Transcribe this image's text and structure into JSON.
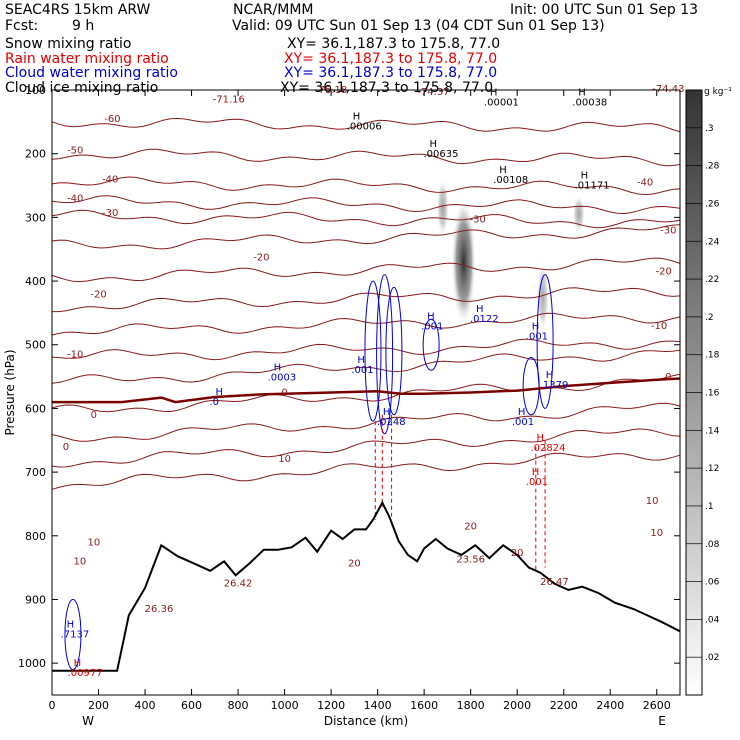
{
  "header": {
    "model": "SEAC4RS 15km ARW",
    "org": "NCAR/MMM",
    "init": "Init: 00 UTC Sun 01 Sep 13",
    "fcst_label": "Fcst:",
    "fcst_value": "9 h",
    "valid": "Valid: 09 UTC Sun 01 Sep 13 (04 CDT Sun 01 Sep 13)"
  },
  "fields": [
    {
      "name": "Snow mixing ratio",
      "xy": "XY=  36.1,187.3 to 175.8, 77.0",
      "color": "#000000"
    },
    {
      "name": "Rain water mixing ratio",
      "xy": "XY=  36.1,187.3 to 175.8, 77.0",
      "color": "#e00000"
    },
    {
      "name": "Cloud water mixing ratio",
      "xy": "XY=  36.1,187.3 to 175.8, 77.0",
      "color": "#0000d0"
    },
    {
      "name": "Cloud ice mixing ratio",
      "xy": "XY=  36.1,187.3 to 175.8, 77.0",
      "color": "#000000"
    }
  ],
  "colorbar": {
    "unit": "g kg⁻¹",
    "ticks": [
      ".02",
      ".04",
      ".06",
      ".08",
      ".1",
      ".12",
      ".14",
      ".16",
      ".18",
      ".2",
      ".22",
      ".24",
      ".26",
      ".28",
      ".3"
    ]
  },
  "chart_data": {
    "type": "contour cross-section",
    "xlabel": "Distance (km)",
    "ylabel": "Pressure (hPa)",
    "xlim": [
      0,
      2700
    ],
    "ylim": [
      1050,
      100
    ],
    "xticks": [
      "0",
      "200",
      "400",
      "600",
      "800",
      "1000",
      "1200",
      "1400",
      "1600",
      "1800",
      "2000",
      "2200",
      "2400",
      "2600"
    ],
    "xtick_values": [
      0,
      200,
      400,
      600,
      800,
      1000,
      1200,
      1400,
      1600,
      1800,
      2000,
      2200,
      2400,
      2600
    ],
    "yticks": [
      "100",
      "200",
      "300",
      "400",
      "500",
      "600",
      "700",
      "800",
      "900",
      "1000"
    ],
    "ytick_values": [
      100,
      200,
      300,
      400,
      500,
      600,
      700,
      800,
      900,
      1000
    ],
    "end_labels": {
      "left": "W",
      "right": "E"
    },
    "temperature_contour_labels": [
      {
        "text": "-71.16",
        "x": 760,
        "p": 120
      },
      {
        "text": "-75.18",
        "x": 1200,
        "p": 105
      },
      {
        "text": "-74.37",
        "x": 1640,
        "p": 108
      },
      {
        "text": "-74.43",
        "x": 2650,
        "p": 103
      },
      {
        "text": "-60",
        "x": 260,
        "p": 150
      },
      {
        "text": "-50",
        "x": 100,
        "p": 200
      },
      {
        "text": "-40",
        "x": 2550,
        "p": 250
      },
      {
        "text": "-40",
        "x": 250,
        "p": 245
      },
      {
        "text": "-40",
        "x": 100,
        "p": 275
      },
      {
        "text": "-30",
        "x": 250,
        "p": 298
      },
      {
        "text": "-30",
        "x": 1830,
        "p": 308
      },
      {
        "text": "-30",
        "x": 2650,
        "p": 325
      },
      {
        "text": "-20",
        "x": 900,
        "p": 368
      },
      {
        "text": "-20",
        "x": 200,
        "p": 426
      },
      {
        "text": "-20",
        "x": 2630,
        "p": 390
      },
      {
        "text": "-10",
        "x": 100,
        "p": 520
      },
      {
        "text": "-10",
        "x": 2610,
        "p": 475
      },
      {
        "text": "0",
        "x": 2650,
        "p": 555
      },
      {
        "text": "0",
        "x": 1000,
        "p": 580
      },
      {
        "text": "0",
        "x": 180,
        "p": 615
      },
      {
        "text": "0",
        "x": 60,
        "p": 665
      },
      {
        "text": "10",
        "x": 1000,
        "p": 684
      },
      {
        "text": "10",
        "x": 2580,
        "p": 750
      },
      {
        "text": "10",
        "x": 180,
        "p": 815
      },
      {
        "text": "10",
        "x": 120,
        "p": 845
      },
      {
        "text": "10",
        "x": 2600,
        "p": 800
      },
      {
        "text": "20",
        "x": 1300,
        "p": 848
      },
      {
        "text": "20",
        "x": 1800,
        "p": 790
      },
      {
        "text": "20",
        "x": 2000,
        "p": 832
      },
      {
        "text": "23.56",
        "x": 1800,
        "p": 842
      },
      {
        "text": "26.42",
        "x": 800,
        "p": 880
      },
      {
        "text": "26.36",
        "x": 460,
        "p": 920
      },
      {
        "text": "26.47",
        "x": 2160,
        "p": 877
      }
    ],
    "maxima_labels": [
      {
        "text": ".00006",
        "x": 1310,
        "p": 162,
        "color": "black"
      },
      {
        "text": ".00635",
        "x": 1640,
        "p": 205,
        "color": "black"
      },
      {
        "text": ".00108",
        "x": 1940,
        "p": 246,
        "color": "black"
      },
      {
        "text": ".01171",
        "x": 2290,
        "p": 255,
        "color": "black"
      },
      {
        "text": ".00001",
        "x": 1900,
        "p": 124,
        "color": "black"
      },
      {
        "text": ".00038",
        "x": 2280,
        "p": 124,
        "color": "black"
      },
      {
        "text": ".0122",
        "x": 1840,
        "p": 464,
        "color": "blue"
      },
      {
        "text": ".001",
        "x": 1630,
        "p": 476,
        "color": "blue"
      },
      {
        "text": ".0003",
        "x": 970,
        "p": 556,
        "color": "blue"
      },
      {
        "text": ".0",
        "x": 720,
        "p": 595,
        "color": "blue"
      },
      {
        "text": ".001",
        "x": 1330,
        "p": 544,
        "color": "blue"
      },
      {
        "text": ".001",
        "x": 2080,
        "p": 492,
        "color": "blue"
      },
      {
        "text": ".1379",
        "x": 2140,
        "p": 568,
        "color": "blue"
      },
      {
        "text": ".001",
        "x": 2020,
        "p": 626,
        "color": "blue"
      },
      {
        "text": ".0248",
        "x": 1440,
        "p": 626,
        "color": "blue"
      },
      {
        "text": ".02824",
        "x": 2100,
        "p": 667,
        "color": "red"
      },
      {
        "text": ".001",
        "x": 2080,
        "p": 720,
        "color": "red"
      },
      {
        "text": ".7137",
        "x": 80,
        "p": 960,
        "color": "blue"
      },
      {
        "text": ".00977",
        "x": 110,
        "p": 1020,
        "color": "red"
      }
    ],
    "terrain_profile_p": [
      [
        0,
        1012
      ],
      [
        280,
        1012
      ],
      [
        330,
        925
      ],
      [
        400,
        882
      ],
      [
        470,
        815
      ],
      [
        540,
        832
      ],
      [
        620,
        845
      ],
      [
        680,
        855
      ],
      [
        740,
        840
      ],
      [
        790,
        862
      ],
      [
        850,
        843
      ],
      [
        910,
        822
      ],
      [
        970,
        822
      ],
      [
        1030,
        818
      ],
      [
        1090,
        803
      ],
      [
        1140,
        825
      ],
      [
        1200,
        792
      ],
      [
        1250,
        805
      ],
      [
        1300,
        790
      ],
      [
        1350,
        790
      ],
      [
        1380,
        775
      ],
      [
        1420,
        748
      ],
      [
        1450,
        770
      ],
      [
        1490,
        808
      ],
      [
        1530,
        830
      ],
      [
        1570,
        840
      ],
      [
        1600,
        820
      ],
      [
        1650,
        805
      ],
      [
        1700,
        820
      ],
      [
        1760,
        830
      ],
      [
        1820,
        815
      ],
      [
        1880,
        835
      ],
      [
        1940,
        815
      ],
      [
        2000,
        830
      ],
      [
        2050,
        850
      ],
      [
        2100,
        858
      ],
      [
        2160,
        875
      ],
      [
        2220,
        885
      ],
      [
        2280,
        880
      ],
      [
        2350,
        890
      ],
      [
        2420,
        905
      ],
      [
        2500,
        915
      ],
      [
        2560,
        925
      ],
      [
        2620,
        935
      ],
      [
        2700,
        950
      ]
    ],
    "freezing_level_p": [
      [
        0,
        590
      ],
      [
        300,
        590
      ],
      [
        470,
        583
      ],
      [
        530,
        590
      ],
      [
        700,
        582
      ],
      [
        900,
        578
      ],
      [
        1200,
        575
      ],
      [
        1400,
        573
      ],
      [
        1500,
        577
      ],
      [
        1600,
        577
      ],
      [
        1800,
        575
      ],
      [
        2000,
        572
      ],
      [
        2200,
        565
      ],
      [
        2400,
        560
      ],
      [
        2600,
        555
      ],
      [
        2700,
        553
      ]
    ],
    "snow_shading": [
      {
        "x": 1770,
        "p_top": 270,
        "p_bottom": 470,
        "max": 0.3
      },
      {
        "x": 1680,
        "p_top": 240,
        "p_bottom": 330,
        "max": 0.05
      },
      {
        "x": 2110,
        "p_top": 370,
        "p_bottom": 480,
        "max": 0.03
      },
      {
        "x": 2265,
        "p_top": 265,
        "p_bottom": 325,
        "max": 0.04
      }
    ],
    "temperature_isotherms_p_at_left": [
      150,
      200,
      245,
      275,
      298,
      345,
      395,
      440,
      480,
      520,
      560,
      605,
      648,
      685,
      720
    ]
  }
}
